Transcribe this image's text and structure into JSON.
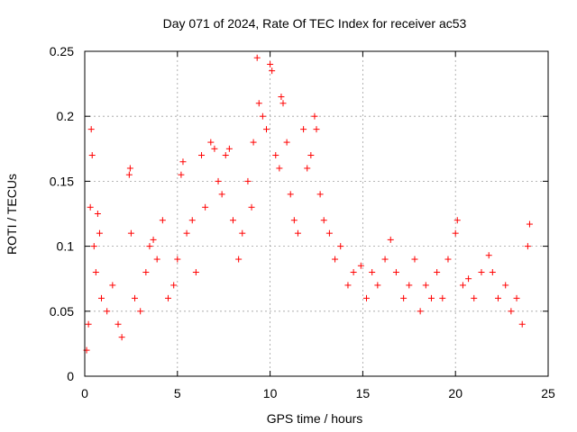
{
  "chart_data": {
    "type": "scatter",
    "title": "Day 071 of 2024, Rate Of TEC Index for receiver ac53",
    "xlabel": "GPS time / hours",
    "ylabel": "ROTI / TECUs",
    "xlim": [
      0,
      25
    ],
    "ylim": [
      0,
      0.25
    ],
    "xticks": [
      0,
      5,
      10,
      15,
      20,
      25
    ],
    "yticks": [
      0,
      0.05,
      0.1,
      0.15,
      0.2,
      0.25
    ],
    "xtick_labels": [
      "0",
      "5",
      "10",
      "15",
      "20",
      "25"
    ],
    "ytick_labels": [
      "0",
      "0.05",
      "0.1",
      "0.15",
      "0.2",
      "0.25"
    ],
    "grid": true,
    "marker": "+",
    "color": "#ff0000",
    "series": [
      {
        "name": "ROTI",
        "points": [
          [
            0.1,
            0.02
          ],
          [
            0.2,
            0.04
          ],
          [
            0.3,
            0.13
          ],
          [
            0.35,
            0.19
          ],
          [
            0.4,
            0.17
          ],
          [
            0.5,
            0.1
          ],
          [
            0.6,
            0.08
          ],
          [
            0.7,
            0.125
          ],
          [
            0.8,
            0.11
          ],
          [
            0.9,
            0.06
          ],
          [
            1.2,
            0.05
          ],
          [
            1.5,
            0.07
          ],
          [
            1.8,
            0.04
          ],
          [
            2.0,
            0.03
          ],
          [
            2.4,
            0.155
          ],
          [
            2.45,
            0.16
          ],
          [
            2.5,
            0.11
          ],
          [
            2.7,
            0.06
          ],
          [
            3.0,
            0.05
          ],
          [
            3.3,
            0.08
          ],
          [
            3.5,
            0.1
          ],
          [
            3.7,
            0.105
          ],
          [
            3.9,
            0.09
          ],
          [
            4.2,
            0.12
          ],
          [
            4.5,
            0.06
          ],
          [
            4.8,
            0.07
          ],
          [
            5.0,
            0.09
          ],
          [
            5.2,
            0.155
          ],
          [
            5.3,
            0.165
          ],
          [
            5.5,
            0.11
          ],
          [
            5.8,
            0.12
          ],
          [
            6.0,
            0.08
          ],
          [
            6.3,
            0.17
          ],
          [
            6.5,
            0.13
          ],
          [
            6.8,
            0.18
          ],
          [
            7.0,
            0.175
          ],
          [
            7.2,
            0.15
          ],
          [
            7.4,
            0.14
          ],
          [
            7.6,
            0.17
          ],
          [
            7.8,
            0.175
          ],
          [
            8.0,
            0.12
          ],
          [
            8.3,
            0.09
          ],
          [
            8.5,
            0.11
          ],
          [
            8.8,
            0.15
          ],
          [
            9.0,
            0.13
          ],
          [
            9.1,
            0.18
          ],
          [
            9.3,
            0.245
          ],
          [
            9.4,
            0.21
          ],
          [
            9.6,
            0.2
          ],
          [
            9.8,
            0.19
          ],
          [
            10.0,
            0.24
          ],
          [
            10.1,
            0.235
          ],
          [
            10.3,
            0.17
          ],
          [
            10.5,
            0.16
          ],
          [
            10.6,
            0.215
          ],
          [
            10.7,
            0.21
          ],
          [
            10.9,
            0.18
          ],
          [
            11.1,
            0.14
          ],
          [
            11.3,
            0.12
          ],
          [
            11.5,
            0.11
          ],
          [
            11.8,
            0.19
          ],
          [
            12.0,
            0.16
          ],
          [
            12.2,
            0.17
          ],
          [
            12.4,
            0.2
          ],
          [
            12.5,
            0.19
          ],
          [
            12.7,
            0.14
          ],
          [
            12.9,
            0.12
          ],
          [
            13.2,
            0.11
          ],
          [
            13.5,
            0.09
          ],
          [
            13.8,
            0.1
          ],
          [
            14.2,
            0.07
          ],
          [
            14.5,
            0.08
          ],
          [
            14.9,
            0.085
          ],
          [
            15.2,
            0.06
          ],
          [
            15.5,
            0.08
          ],
          [
            15.8,
            0.07
          ],
          [
            16.2,
            0.09
          ],
          [
            16.5,
            0.105
          ],
          [
            16.8,
            0.08
          ],
          [
            17.2,
            0.06
          ],
          [
            17.5,
            0.07
          ],
          [
            17.8,
            0.09
          ],
          [
            18.1,
            0.05
          ],
          [
            18.4,
            0.07
          ],
          [
            18.7,
            0.06
          ],
          [
            19.0,
            0.08
          ],
          [
            19.3,
            0.06
          ],
          [
            19.6,
            0.09
          ],
          [
            20.0,
            0.11
          ],
          [
            20.1,
            0.12
          ],
          [
            20.4,
            0.07
          ],
          [
            20.7,
            0.075
          ],
          [
            21.0,
            0.06
          ],
          [
            21.4,
            0.08
          ],
          [
            21.8,
            0.093
          ],
          [
            22.0,
            0.08
          ],
          [
            22.3,
            0.06
          ],
          [
            22.7,
            0.07
          ],
          [
            23.0,
            0.05
          ],
          [
            23.3,
            0.06
          ],
          [
            23.6,
            0.04
          ],
          [
            23.9,
            0.1
          ],
          [
            24.0,
            0.117
          ]
        ]
      }
    ]
  }
}
